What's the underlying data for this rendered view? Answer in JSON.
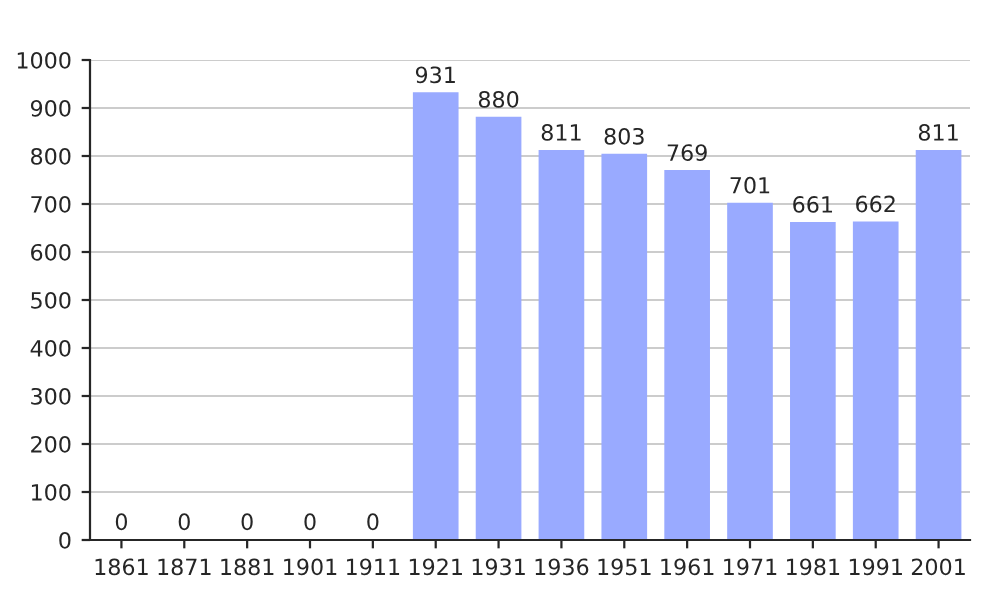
{
  "chart_data": {
    "type": "bar",
    "categories": [
      "1861",
      "1871",
      "1881",
      "1901",
      "1911",
      "1921",
      "1931",
      "1936",
      "1951",
      "1961",
      "1971",
      "1981",
      "1991",
      "2001"
    ],
    "values": [
      0,
      0,
      0,
      0,
      0,
      931,
      880,
      811,
      803,
      769,
      701,
      661,
      662,
      811
    ],
    "color": "#99aaff",
    "ylim": [
      0,
      1000
    ],
    "yticks": [
      0,
      100,
      200,
      300,
      400,
      500,
      600,
      700,
      800,
      900,
      1000
    ],
    "grid": "y",
    "data_labels": true
  }
}
